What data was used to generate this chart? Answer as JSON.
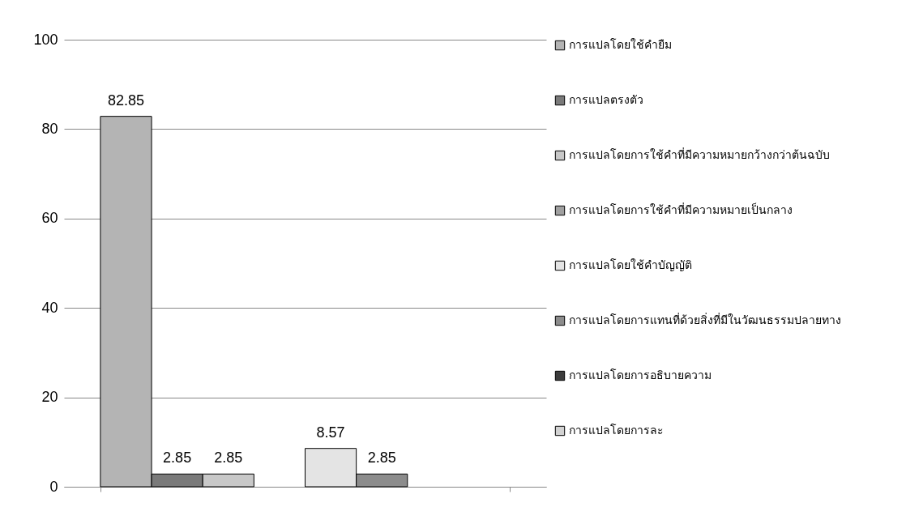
{
  "chart_data": {
    "type": "bar",
    "categories": [
      null
    ],
    "series": [
      {
        "name": "การแปลโดยใช้คำยืม",
        "color": "#b4b4b4",
        "values": [
          82.85
        ]
      },
      {
        "name": "การแปลตรงตัว",
        "color": "#7a7a7a",
        "values": [
          2.85
        ]
      },
      {
        "name": "การแปลโดยการใช้คำที่มีความหมายกว้างกว่าต้นฉบับ",
        "color": "#c8c8c8",
        "values": [
          2.85
        ]
      },
      {
        "name": "การแปลโดยการใช้คำที่มีความหมายเป็นกลาง",
        "color": "#a0a0a0",
        "values": [
          null
        ]
      },
      {
        "name": "การแปลโดยใช้คำบัญญัติ",
        "color": "#e4e4e4",
        "values": [
          8.57
        ]
      },
      {
        "name": "การแปลโดยการแทนที่ด้วยสิ่งที่มีในวัฒนธรรมปลายทาง",
        "color": "#8c8c8c",
        "values": [
          2.85
        ]
      },
      {
        "name": "การแปลโดยการอธิบายความ",
        "color": "#3c3c3c",
        "values": [
          null
        ]
      },
      {
        "name": "การแปลโดยการละ",
        "color": "#d2d2d2",
        "values": [
          null
        ]
      }
    ],
    "ylim": [
      0,
      100
    ],
    "yticks": [
      0,
      20,
      40,
      60,
      80,
      100
    ],
    "grid": "y",
    "legend": "right",
    "data_labels": true,
    "tick_labels": "y"
  }
}
